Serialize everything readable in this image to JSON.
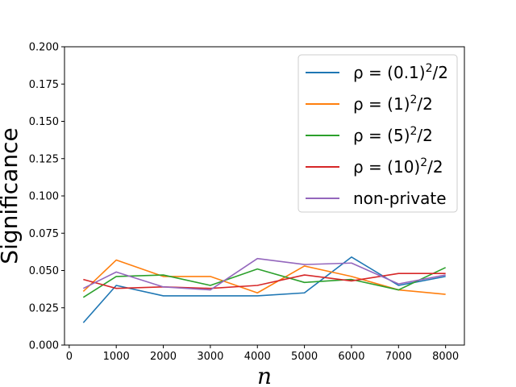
{
  "chart_data": {
    "type": "line",
    "xlabel": "n",
    "ylabel": "Significance",
    "xlim": [
      -100,
      8400
    ],
    "ylim": [
      0.0,
      0.2
    ],
    "xticks": [
      "0",
      "1000",
      "2000",
      "3000",
      "4000",
      "5000",
      "6000",
      "7000",
      "8000"
    ],
    "yticks": [
      "0.000",
      "0.025",
      "0.050",
      "0.075",
      "0.100",
      "0.125",
      "0.150",
      "0.175",
      "0.200"
    ],
    "grid": false,
    "legend_position": "top-right",
    "series": [
      {
        "name": "ρ = (0.1)²/2",
        "color": "#1f77b4",
        "x": [
          300,
          1000,
          2000,
          3000,
          4000,
          5000,
          6000,
          7000,
          8000
        ],
        "y": [
          0.015,
          0.04,
          0.033,
          0.033,
          0.033,
          0.035,
          0.059,
          0.04,
          0.046
        ]
      },
      {
        "name": "ρ = (1)²/2",
        "color": "#ff7f0e",
        "x": [
          300,
          1000,
          2000,
          3000,
          4000,
          5000,
          6000,
          7000,
          8000
        ],
        "y": [
          0.036,
          0.057,
          0.046,
          0.046,
          0.035,
          0.053,
          0.046,
          0.037,
          0.034
        ]
      },
      {
        "name": "ρ = (5)²/2",
        "color": "#2ca02c",
        "x": [
          300,
          1000,
          2000,
          3000,
          4000,
          5000,
          6000,
          7000,
          8000
        ],
        "y": [
          0.032,
          0.046,
          0.047,
          0.04,
          0.051,
          0.042,
          0.044,
          0.037,
          0.052
        ]
      },
      {
        "name": "ρ = (10)²/2",
        "color": "#d62728",
        "x": [
          300,
          1000,
          2000,
          3000,
          4000,
          5000,
          6000,
          7000,
          8000
        ],
        "y": [
          0.044,
          0.038,
          0.039,
          0.038,
          0.04,
          0.047,
          0.043,
          0.048,
          0.048
        ]
      },
      {
        "name": "non-private",
        "color": "#9467bd",
        "x": [
          300,
          1000,
          2000,
          3000,
          4000,
          5000,
          6000,
          7000,
          8000
        ],
        "y": [
          0.038,
          0.049,
          0.039,
          0.037,
          0.058,
          0.054,
          0.055,
          0.041,
          0.047
        ]
      }
    ],
    "legend": [
      {
        "base": "ρ = (0.1)",
        "sup": "2",
        "tail": "/2"
      },
      {
        "base": "ρ = (1)",
        "sup": "2",
        "tail": "/2"
      },
      {
        "base": "ρ = (5)",
        "sup": "2",
        "tail": "/2"
      },
      {
        "base": "ρ = (10)",
        "sup": "2",
        "tail": "/2"
      },
      {
        "base": "non-private",
        "sup": "",
        "tail": ""
      }
    ]
  }
}
